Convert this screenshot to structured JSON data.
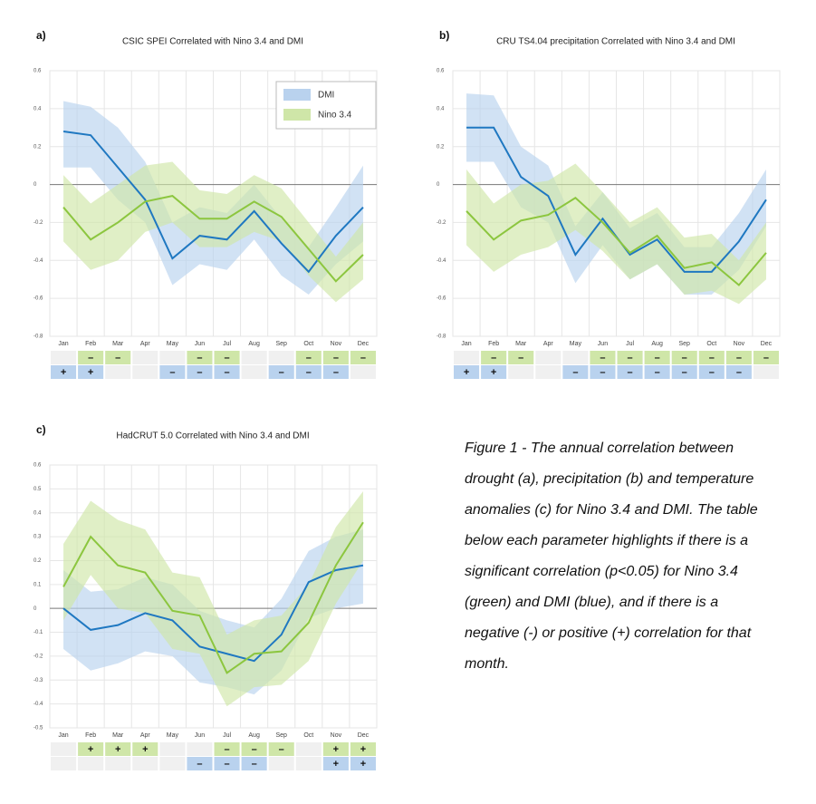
{
  "chart_data": [
    {
      "type": "line",
      "panel": "a)",
      "title": "CSIC SPEI Correlated with Nino 3.4 and DMI",
      "categories": [
        "Jan",
        "Feb",
        "Mar",
        "Apr",
        "May",
        "Jun",
        "Jul",
        "Aug",
        "Sep",
        "Oct",
        "Nov",
        "Dec"
      ],
      "ylim": [
        -0.8,
        0.6
      ],
      "yticks": [
        -0.8,
        -0.6,
        -0.4,
        -0.2,
        0,
        0.2,
        0.4,
        0.6
      ],
      "grid": true,
      "legend": "upper right",
      "series": [
        {
          "name": "DMI",
          "color": "#1f78c1",
          "band_color": "#b9d2ee",
          "values": [
            0.28,
            0.26,
            0.09,
            -0.08,
            -0.39,
            -0.27,
            -0.29,
            -0.14,
            -0.31,
            -0.46,
            -0.27,
            -0.12
          ],
          "lower": [
            0.09,
            0.09,
            -0.08,
            -0.2,
            -0.53,
            -0.42,
            -0.45,
            -0.29,
            -0.48,
            -0.58,
            -0.42,
            -0.3
          ],
          "upper": [
            0.44,
            0.41,
            0.3,
            0.12,
            -0.2,
            -0.12,
            -0.15,
            0.0,
            -0.18,
            -0.33,
            -0.12,
            0.1
          ],
          "significance": [
            "+",
            "+",
            null,
            null,
            "–",
            "–",
            "–",
            null,
            "–",
            "–",
            "–",
            null
          ]
        },
        {
          "name": "Nino 3.4",
          "color": "#8cc63f",
          "band_color": "#cfe6a8",
          "values": [
            -0.12,
            -0.29,
            -0.2,
            -0.09,
            -0.06,
            -0.18,
            -0.18,
            -0.09,
            -0.17,
            -0.34,
            -0.51,
            -0.37
          ],
          "lower": [
            -0.3,
            -0.45,
            -0.4,
            -0.25,
            -0.2,
            -0.33,
            -0.33,
            -0.25,
            -0.3,
            -0.48,
            -0.62,
            -0.5
          ],
          "upper": [
            0.05,
            -0.1,
            0.0,
            0.1,
            0.12,
            -0.03,
            -0.05,
            0.05,
            -0.02,
            -0.2,
            -0.38,
            -0.2
          ],
          "significance": [
            null,
            "–",
            "–",
            null,
            null,
            "–",
            "–",
            null,
            null,
            "–",
            "–",
            "–"
          ]
        }
      ]
    },
    {
      "type": "line",
      "panel": "b)",
      "title": "CRU TS4.04 precipitation Correlated with Nino 3.4 and DMI",
      "categories": [
        "Jan",
        "Feb",
        "Mar",
        "Apr",
        "May",
        "Jun",
        "Jul",
        "Aug",
        "Sep",
        "Oct",
        "Nov",
        "Dec"
      ],
      "ylim": [
        -0.8,
        0.6
      ],
      "yticks": [
        -0.8,
        -0.6,
        -0.4,
        -0.2,
        0,
        0.2,
        0.4,
        0.6
      ],
      "grid": true,
      "series": [
        {
          "name": "DMI",
          "color": "#1f78c1",
          "band_color": "#b9d2ee",
          "values": [
            0.3,
            0.3,
            0.04,
            -0.06,
            -0.37,
            -0.18,
            -0.37,
            -0.29,
            -0.46,
            -0.46,
            -0.3,
            -0.08
          ],
          "lower": [
            0.12,
            0.12,
            -0.12,
            -0.2,
            -0.52,
            -0.32,
            -0.5,
            -0.42,
            -0.58,
            -0.58,
            -0.45,
            -0.22
          ],
          "upper": [
            0.48,
            0.47,
            0.2,
            0.1,
            -0.22,
            -0.04,
            -0.23,
            -0.15,
            -0.33,
            -0.33,
            -0.15,
            0.08
          ],
          "significance": [
            "+",
            "+",
            null,
            null,
            "–",
            "–",
            "–",
            "–",
            "–",
            "–",
            "–",
            null
          ]
        },
        {
          "name": "Nino 3.4",
          "color": "#8cc63f",
          "band_color": "#cfe6a8",
          "values": [
            -0.14,
            -0.29,
            -0.19,
            -0.16,
            -0.07,
            -0.2,
            -0.36,
            -0.27,
            -0.44,
            -0.41,
            -0.53,
            -0.36
          ],
          "lower": [
            -0.32,
            -0.46,
            -0.37,
            -0.33,
            -0.24,
            -0.35,
            -0.5,
            -0.42,
            -0.58,
            -0.56,
            -0.63,
            -0.5
          ],
          "upper": [
            0.08,
            -0.1,
            0.0,
            0.02,
            0.11,
            -0.04,
            -0.2,
            -0.12,
            -0.28,
            -0.26,
            -0.4,
            -0.2
          ],
          "significance": [
            null,
            "–",
            "–",
            null,
            null,
            "–",
            "–",
            "–",
            "–",
            "–",
            "–",
            "–"
          ]
        }
      ]
    },
    {
      "type": "line",
      "panel": "c)",
      "title": "HadCRUT 5.0 Correlated with Nino 3.4 and DMI",
      "categories": [
        "Jan",
        "Feb",
        "Mar",
        "Apr",
        "May",
        "Jun",
        "Jul",
        "Aug",
        "Sep",
        "Oct",
        "Nov",
        "Dec"
      ],
      "ylim": [
        -0.5,
        0.6
      ],
      "yticks": [
        -0.5,
        -0.4,
        -0.3,
        -0.2,
        -0.1,
        0,
        0.1,
        0.2,
        0.3,
        0.4,
        0.5,
        0.6
      ],
      "grid": true,
      "series": [
        {
          "name": "DMI",
          "color": "#1f78c1",
          "band_color": "#b9d2ee",
          "values": [
            0.0,
            -0.09,
            -0.07,
            -0.02,
            -0.05,
            -0.16,
            -0.19,
            -0.22,
            -0.11,
            0.11,
            0.16,
            0.18
          ],
          "lower": [
            -0.17,
            -0.26,
            -0.23,
            -0.18,
            -0.2,
            -0.31,
            -0.33,
            -0.36,
            -0.26,
            -0.04,
            0.0,
            0.02
          ],
          "upper": [
            0.16,
            0.07,
            0.08,
            0.13,
            0.1,
            -0.01,
            -0.05,
            -0.08,
            0.04,
            0.24,
            0.3,
            0.33
          ],
          "significance": [
            null,
            null,
            null,
            null,
            null,
            "–",
            "–",
            "–",
            null,
            null,
            "+",
            "+"
          ]
        },
        {
          "name": "Nino 3.4",
          "color": "#8cc63f",
          "band_color": "#cfe6a8",
          "values": [
            0.09,
            0.3,
            0.18,
            0.15,
            -0.01,
            -0.03,
            -0.27,
            -0.19,
            -0.18,
            -0.06,
            0.18,
            0.36
          ],
          "lower": [
            -0.05,
            0.14,
            0.0,
            -0.02,
            -0.17,
            -0.19,
            -0.41,
            -0.33,
            -0.32,
            -0.22,
            0.02,
            0.2
          ],
          "upper": [
            0.27,
            0.45,
            0.37,
            0.33,
            0.15,
            0.13,
            -0.11,
            -0.05,
            -0.03,
            0.1,
            0.34,
            0.49
          ],
          "significance": [
            null,
            "+",
            "+",
            "+",
            null,
            null,
            "–",
            "–",
            "–",
            null,
            "+",
            "+"
          ]
        }
      ]
    }
  ],
  "caption": "Figure 1 - The annual correlation between drought (a), precipitation (b) and temperature anomalies (c) for Nino 3.4 and DMI. The table below each parameter highlights if there is a significant correlation (p<0.05) for Nino 3.4 (green) and DMI (blue), and if there is a negative (-) or positive (+) correlation for that month."
}
